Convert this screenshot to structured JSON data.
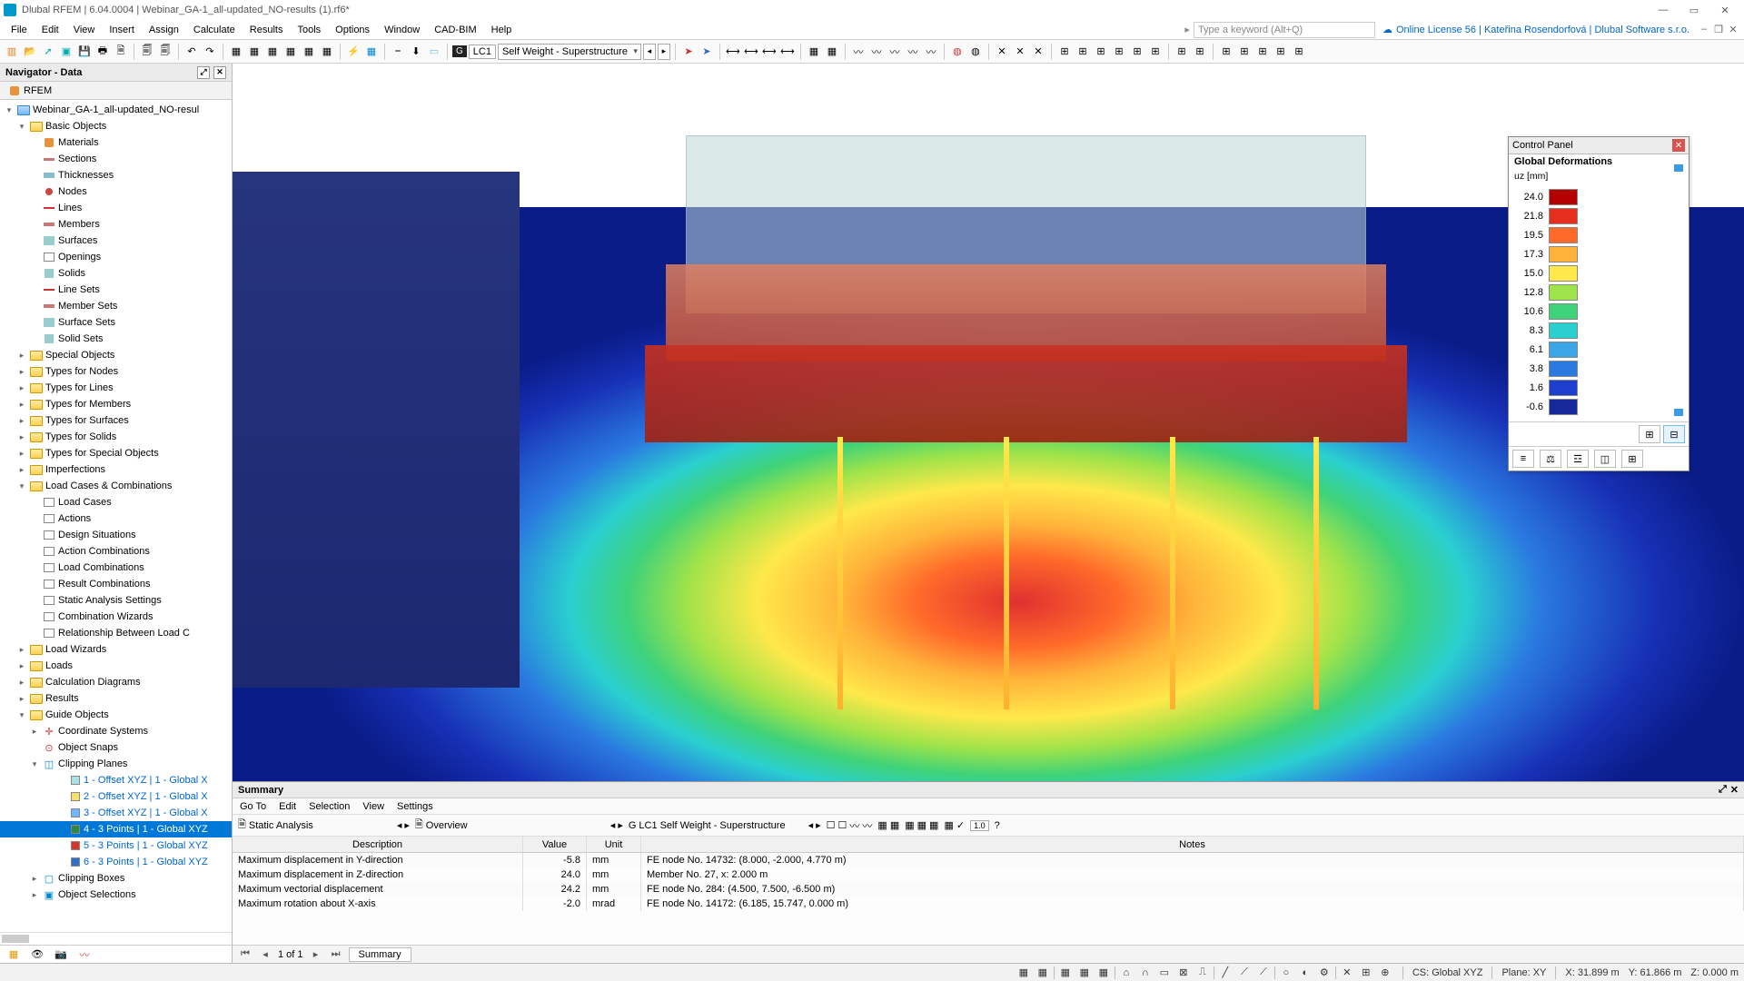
{
  "title": "Dlubal RFEM | 6.04.0004 | Webinar_GA-1_all-updated_NO-results (1).rf6*",
  "menu": [
    "File",
    "Edit",
    "View",
    "Insert",
    "Assign",
    "Calculate",
    "Results",
    "Tools",
    "Options",
    "Window",
    "CAD-BIM",
    "Help"
  ],
  "search_placeholder": "Type a keyword (Alt+Q)",
  "license": "Online License 56 | Kateřina Rosendorfová | Dlubal Software s.r.o.",
  "toolbar": {
    "lc_tag": "LC1",
    "lc_combo": "Self Weight - Superstructure"
  },
  "navigator": {
    "title": "Navigator - Data",
    "root": "RFEM",
    "project": "Webinar_GA-1_all-updated_NO-resul",
    "basic_objects": {
      "label": "Basic Objects",
      "children": [
        "Materials",
        "Sections",
        "Thicknesses",
        "Nodes",
        "Lines",
        "Members",
        "Surfaces",
        "Openings",
        "Solids",
        "Line Sets",
        "Member Sets",
        "Surface Sets",
        "Solid Sets"
      ]
    },
    "groups1": [
      "Special Objects",
      "Types for Nodes",
      "Types for Lines",
      "Types for Members",
      "Types for Surfaces",
      "Types for Solids",
      "Types for Special Objects",
      "Imperfections"
    ],
    "loadcomb": {
      "label": "Load Cases & Combinations",
      "children": [
        "Load Cases",
        "Actions",
        "Design Situations",
        "Action Combinations",
        "Load Combinations",
        "Result Combinations",
        "Static Analysis Settings",
        "Combination Wizards",
        "Relationship Between Load C"
      ]
    },
    "groups2": [
      "Load Wizards",
      "Loads",
      "Calculation Diagrams",
      "Results"
    ],
    "guide": {
      "label": "Guide Objects",
      "coord": "Coordinate Systems",
      "snaps": "Object Snaps",
      "clip": "Clipping Planes",
      "clips": [
        {
          "label": "1 - Offset XYZ | 1 - Global X",
          "color": "#a7e3e6"
        },
        {
          "label": "2 - Offset XYZ | 1 - Global X",
          "color": "#f4e26b"
        },
        {
          "label": "3 - Offset XYZ | 1 - Global X",
          "color": "#6fb7ff"
        },
        {
          "label": "4 - 3 Points | 1 - Global XYZ",
          "color": "#2a8a45",
          "selected": true
        },
        {
          "label": "5 - 3 Points | 1 - Global XYZ",
          "color": "#d9342b"
        },
        {
          "label": "6 - 3 Points | 1 - Global XYZ",
          "color": "#2f6fd0"
        }
      ],
      "boxes": "Clipping Boxes",
      "selections": "Object Selections"
    }
  },
  "control_panel": {
    "title": "Control Panel",
    "subtitle": "Global Deformations",
    "unit": "uᴢ [mm]",
    "legend": [
      {
        "v": "24.0",
        "c": "#b40000"
      },
      {
        "v": "21.8",
        "c": "#e62e1f"
      },
      {
        "v": "19.5",
        "c": "#ff6a2a"
      },
      {
        "v": "17.3",
        "c": "#ffb33a"
      },
      {
        "v": "15.0",
        "c": "#ffe84a"
      },
      {
        "v": "12.8",
        "c": "#9ee34a"
      },
      {
        "v": "10.6",
        "c": "#3ed27a"
      },
      {
        "v": "8.3",
        "c": "#2acfd0"
      },
      {
        "v": "6.1",
        "c": "#3aa6e8"
      },
      {
        "v": "3.8",
        "c": "#2a7ae0"
      },
      {
        "v": "1.6",
        "c": "#1c3fd0"
      },
      {
        "v": "-0.6",
        "c": "#16289a"
      }
    ]
  },
  "summary": {
    "title": "Summary",
    "menu": [
      "Go To",
      "Edit",
      "Selection",
      "View",
      "Settings"
    ],
    "combo1": "Static Analysis",
    "combo2": "Overview",
    "lc_tag": "LC1",
    "lc_combo": "Self Weight - Superstructure",
    "columns": [
      "Description",
      "Value",
      "Unit",
      "Notes"
    ],
    "rows": [
      [
        "Maximum displacement in Y-direction",
        "-5.8",
        "mm",
        "FE node No. 14732: (8.000, -2.000, 4.770 m)"
      ],
      [
        "Maximum displacement in Z-direction",
        "24.0",
        "mm",
        "Member No. 27, x: 2.000 m"
      ],
      [
        "Maximum vectorial displacement",
        "24.2",
        "mm",
        "FE node No. 284: (4.500, 7.500, -6.500 m)"
      ],
      [
        "Maximum rotation about X-axis",
        "-2.0",
        "mrad",
        "FE node No. 14172: (6.185, 15.747, 0.000 m)"
      ]
    ],
    "pager": "1 of 1",
    "tab": "Summary"
  },
  "status": {
    "cs": "CS: Global XYZ",
    "plane": "Plane: XY",
    "x": "X: 31.899 m",
    "y": "Y: 61.866 m",
    "z": "Z: 0.000 m"
  }
}
